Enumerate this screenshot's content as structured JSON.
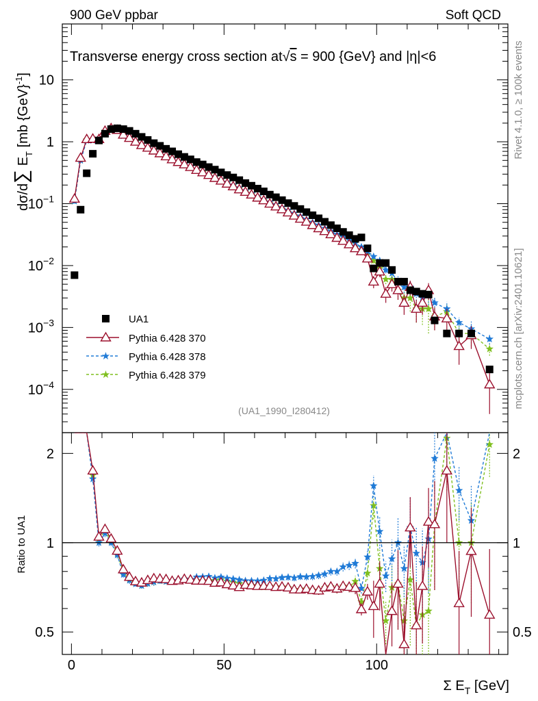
{
  "header": {
    "energy_label": "900 GeV ppbar",
    "category_label": "Soft QCD"
  },
  "side": {
    "rivet_label": "Rivet 4.1.0, ≥ 100k events",
    "mcplots_label": "mcplots.cern.ch [arXiv:2401.10621]"
  },
  "colors": {
    "data": "#000000",
    "p370": "#9b0f2c",
    "p378": "#1f7ad6",
    "p379": "#7fbf1f"
  },
  "chart_data": [
    {
      "type": "scatter",
      "panel": "main",
      "title_part1": "Transverse energy cross section at",
      "title_sqrt_symbol": "√",
      "title_sqrt_arg": "s",
      "title_part2": " = 900 {GeV} and |",
      "title_eta_symbol": "η",
      "title_part3": "|<6",
      "ylabel": "dσ/d∑ E_T [mb {GeV}^-1]",
      "ylabel_parts": {
        "a": "dσ/d",
        "sum": "∑",
        "e": " E",
        "t": "T",
        "unit": " [mb {GeV}",
        "exp": "-1",
        "close": "]"
      },
      "yscale": "log",
      "ylim": [
        2e-05,
        80
      ],
      "xlim": [
        -3,
        143
      ],
      "y_ticks": [
        {
          "value": 10,
          "label": "10",
          "exp": ""
        },
        {
          "value": 1,
          "label": "1",
          "exp": ""
        },
        {
          "value": 0.1,
          "label": "10",
          "exp": "−1"
        },
        {
          "value": 0.01,
          "label": "10",
          "exp": "−2"
        },
        {
          "value": 0.001,
          "label": "10",
          "exp": "−3"
        },
        {
          "value": 0.0001,
          "label": "10",
          "exp": "−4"
        }
      ],
      "watermark": "(UA1_1990_I280412)",
      "legend": {
        "placement": "lower-left",
        "entries": [
          "UA1",
          "Pythia 6.428 370",
          "Pythia 6.428 378",
          "Pythia 6.428 379"
        ]
      },
      "series": [
        {
          "name": "UA1",
          "style": "square",
          "x": [
            1,
            3,
            5,
            7,
            9,
            11,
            13,
            15,
            17,
            19,
            21,
            23,
            25,
            27,
            29,
            31,
            33,
            35,
            37,
            39,
            41,
            43,
            45,
            47,
            49,
            51,
            53,
            55,
            57,
            59,
            61,
            63,
            65,
            67,
            69,
            71,
            73,
            75,
            77,
            79,
            81,
            83,
            85,
            87,
            89,
            91,
            93,
            95,
            97,
            99,
            101,
            103,
            105,
            107,
            109,
            111,
            113,
            115,
            117,
            119,
            123,
            127,
            131,
            137
          ],
          "y": [
            0.007,
            0.08,
            0.31,
            0.64,
            1.05,
            1.35,
            1.6,
            1.65,
            1.6,
            1.5,
            1.35,
            1.2,
            1.07,
            0.95,
            0.86,
            0.77,
            0.7,
            0.63,
            0.57,
            0.52,
            0.47,
            0.43,
            0.39,
            0.355,
            0.32,
            0.29,
            0.265,
            0.24,
            0.215,
            0.195,
            0.175,
            0.158,
            0.14,
            0.127,
            0.114,
            0.102,
            0.092,
            0.082,
            0.073,
            0.065,
            0.058,
            0.051,
            0.045,
            0.04,
            0.035,
            0.031,
            0.027,
            0.0285,
            0.019,
            0.009,
            0.011,
            0.011,
            0.0085,
            0.0055,
            0.0055,
            0.004,
            0.0038,
            0.0035,
            0.0034,
            0.0013,
            0.0008,
            0.0008,
            0.0008,
            0.00021
          ]
        },
        {
          "name": "Pythia 6.428 370",
          "style": "triangle",
          "x": [
            1,
            3,
            5,
            7,
            9,
            11,
            13,
            15,
            17,
            19,
            21,
            23,
            25,
            27,
            29,
            31,
            33,
            35,
            37,
            39,
            41,
            43,
            45,
            47,
            49,
            51,
            53,
            55,
            57,
            59,
            61,
            63,
            65,
            67,
            69,
            71,
            73,
            75,
            77,
            79,
            81,
            83,
            85,
            87,
            89,
            91,
            93,
            95,
            97,
            99,
            101,
            103,
            105,
            107,
            109,
            111,
            113,
            115,
            117,
            119,
            123,
            127,
            131,
            137
          ],
          "y": [
            0.12,
            0.55,
            1.1,
            1.12,
            1.1,
            1.5,
            1.65,
            1.55,
            1.3,
            1.15,
            1.0,
            0.88,
            0.8,
            0.72,
            0.65,
            0.58,
            0.52,
            0.47,
            0.43,
            0.39,
            0.35,
            0.32,
            0.29,
            0.26,
            0.235,
            0.21,
            0.19,
            0.17,
            0.155,
            0.14,
            0.125,
            0.113,
            0.1,
            0.09,
            0.081,
            0.072,
            0.064,
            0.057,
            0.051,
            0.045,
            0.04,
            0.036,
            0.032,
            0.028,
            0.025,
            0.022,
            0.019,
            0.017,
            0.013,
            0.0055,
            0.008,
            0.0035,
            0.005,
            0.004,
            0.0025,
            0.0045,
            0.002,
            0.0025,
            0.004,
            0.0015,
            0.0014,
            0.0005,
            0.00075,
            0.00012
          ],
          "err": [
            0.01,
            0.02,
            0.03,
            0.03,
            0.03,
            0.04,
            0.04,
            0.04,
            0.03,
            0.03,
            0.02,
            0.02,
            0.02,
            0.02,
            0.015,
            0.012,
            0.01,
            0.01,
            0.009,
            0.008,
            0.007,
            0.006,
            0.006,
            0.005,
            0.005,
            0.004,
            0.004,
            0.004,
            0.003,
            0.003,
            0.003,
            0.0025,
            0.0025,
            0.002,
            0.002,
            0.002,
            0.0018,
            0.0016,
            0.0015,
            0.0014,
            0.0013,
            0.0012,
            0.0011,
            0.001,
            0.001,
            0.0009,
            0.0009,
            0.0008,
            0.0008,
            0.0012,
            0.0015,
            0.001,
            0.0012,
            0.0012,
            0.0009,
            0.0012,
            0.0008,
            0.0009,
            0.0012,
            0.0006,
            0.0006,
            0.00025,
            0.0003,
            8e-05
          ]
        },
        {
          "name": "Pythia 6.428 378",
          "style": "star-blue",
          "x": [
            1,
            3,
            5,
            7,
            9,
            11,
            13,
            15,
            17,
            19,
            21,
            23,
            25,
            27,
            29,
            31,
            33,
            35,
            37,
            39,
            41,
            43,
            45,
            47,
            49,
            51,
            53,
            55,
            57,
            59,
            61,
            63,
            65,
            67,
            69,
            71,
            73,
            75,
            77,
            79,
            81,
            83,
            85,
            87,
            89,
            91,
            93,
            95,
            97,
            99,
            101,
            103,
            105,
            107,
            109,
            111,
            113,
            115,
            117,
            119,
            123,
            127,
            131,
            137
          ],
          "y": [
            0.11,
            0.5,
            1.05,
            1.05,
            1.05,
            1.45,
            1.6,
            1.5,
            1.25,
            1.12,
            0.98,
            0.86,
            0.78,
            0.7,
            0.64,
            0.57,
            0.52,
            0.47,
            0.43,
            0.39,
            0.36,
            0.33,
            0.3,
            0.27,
            0.245,
            0.22,
            0.2,
            0.18,
            0.16,
            0.145,
            0.13,
            0.118,
            0.106,
            0.096,
            0.087,
            0.078,
            0.07,
            0.063,
            0.056,
            0.05,
            0.045,
            0.04,
            0.036,
            0.032,
            0.029,
            0.026,
            0.023,
            0.02,
            0.017,
            0.014,
            0.012,
            0.0085,
            0.0075,
            0.0055,
            0.0045,
            0.0045,
            0.0035,
            0.003,
            0.0035,
            0.0025,
            0.002,
            0.0012,
            0.00095,
            0.00065
          ],
          "err": [
            0.01,
            0.02,
            0.03,
            0.03,
            0.03,
            0.04,
            0.04,
            0.04,
            0.03,
            0.03,
            0.02,
            0.02,
            0.02,
            0.02,
            0.015,
            0.012,
            0.01,
            0.01,
            0.009,
            0.008,
            0.007,
            0.006,
            0.006,
            0.005,
            0.005,
            0.004,
            0.004,
            0.004,
            0.003,
            0.003,
            0.003,
            0.0025,
            0.0025,
            0.002,
            0.002,
            0.002,
            0.0018,
            0.0016,
            0.0015,
            0.0014,
            0.0013,
            0.0012,
            0.0011,
            0.001,
            0.001,
            0.0009,
            0.0009,
            0.0008,
            0.0008,
            0.0012,
            0.0015,
            0.001,
            0.0012,
            0.0012,
            0.0009,
            0.0012,
            0.0008,
            0.0009,
            0.0012,
            0.0006,
            0.0006,
            0.00025,
            0.0003,
            0.00012
          ]
        },
        {
          "name": "Pythia 6.428 379",
          "style": "star-green",
          "x": [
            1,
            3,
            5,
            7,
            9,
            11,
            13,
            15,
            17,
            19,
            21,
            23,
            25,
            27,
            29,
            31,
            33,
            35,
            37,
            39,
            41,
            43,
            45,
            47,
            49,
            51,
            53,
            55,
            57,
            59,
            61,
            63,
            65,
            67,
            69,
            71,
            73,
            75,
            77,
            79,
            81,
            83,
            85,
            87,
            89,
            91,
            93,
            95,
            97,
            99,
            101,
            103,
            105,
            107,
            109,
            111,
            113,
            115,
            117,
            119,
            123,
            127,
            131,
            137
          ],
          "y": [
            0.11,
            0.52,
            1.08,
            1.08,
            1.08,
            1.48,
            1.62,
            1.52,
            1.27,
            1.13,
            0.99,
            0.86,
            0.78,
            0.7,
            0.64,
            0.57,
            0.52,
            0.47,
            0.43,
            0.39,
            0.35,
            0.32,
            0.29,
            0.265,
            0.24,
            0.215,
            0.195,
            0.175,
            0.155,
            0.14,
            0.125,
            0.112,
            0.1,
            0.09,
            0.081,
            0.072,
            0.064,
            0.057,
            0.051,
            0.045,
            0.04,
            0.036,
            0.032,
            0.028,
            0.025,
            0.022,
            0.02,
            0.018,
            0.015,
            0.012,
            0.009,
            0.006,
            0.006,
            0.004,
            0.003,
            0.003,
            0.002,
            0.002,
            0.002,
            0.0015,
            0.0018,
            0.0008,
            0.0008,
            0.00045
          ],
          "err": [
            0.01,
            0.02,
            0.03,
            0.03,
            0.03,
            0.04,
            0.04,
            0.04,
            0.03,
            0.03,
            0.02,
            0.02,
            0.02,
            0.02,
            0.015,
            0.012,
            0.01,
            0.01,
            0.009,
            0.008,
            0.007,
            0.006,
            0.006,
            0.005,
            0.005,
            0.004,
            0.004,
            0.004,
            0.003,
            0.003,
            0.003,
            0.0025,
            0.0025,
            0.002,
            0.002,
            0.002,
            0.0018,
            0.0016,
            0.0015,
            0.0014,
            0.0013,
            0.0012,
            0.0011,
            0.001,
            0.001,
            0.0009,
            0.0009,
            0.0008,
            0.0008,
            0.0012,
            0.0015,
            0.001,
            0.0012,
            0.0012,
            0.0009,
            0.0012,
            0.0008,
            0.0009,
            0.0012,
            0.0006,
            0.0006,
            0.00025,
            0.0003,
            0.0001
          ]
        }
      ]
    },
    {
      "type": "line",
      "panel": "ratio",
      "ylabel": "Ratio to UA1",
      "xlabel_parts": {
        "sym": "Σ E",
        "sub": "T",
        "unit": " [GeV]"
      },
      "yscale": "log",
      "ylim": [
        0.42,
        2.35
      ],
      "xlim": [
        -3,
        143
      ],
      "y_ticks": [
        {
          "value": 2,
          "label": "2"
        },
        {
          "value": 1,
          "label": "1"
        },
        {
          "value": 0.5,
          "label": "0.5"
        }
      ],
      "x_ticks": [
        {
          "value": 0,
          "label": "0"
        },
        {
          "value": 50,
          "label": "50"
        },
        {
          "value": 100,
          "label": "100"
        }
      ],
      "reference_line": 1
    }
  ]
}
